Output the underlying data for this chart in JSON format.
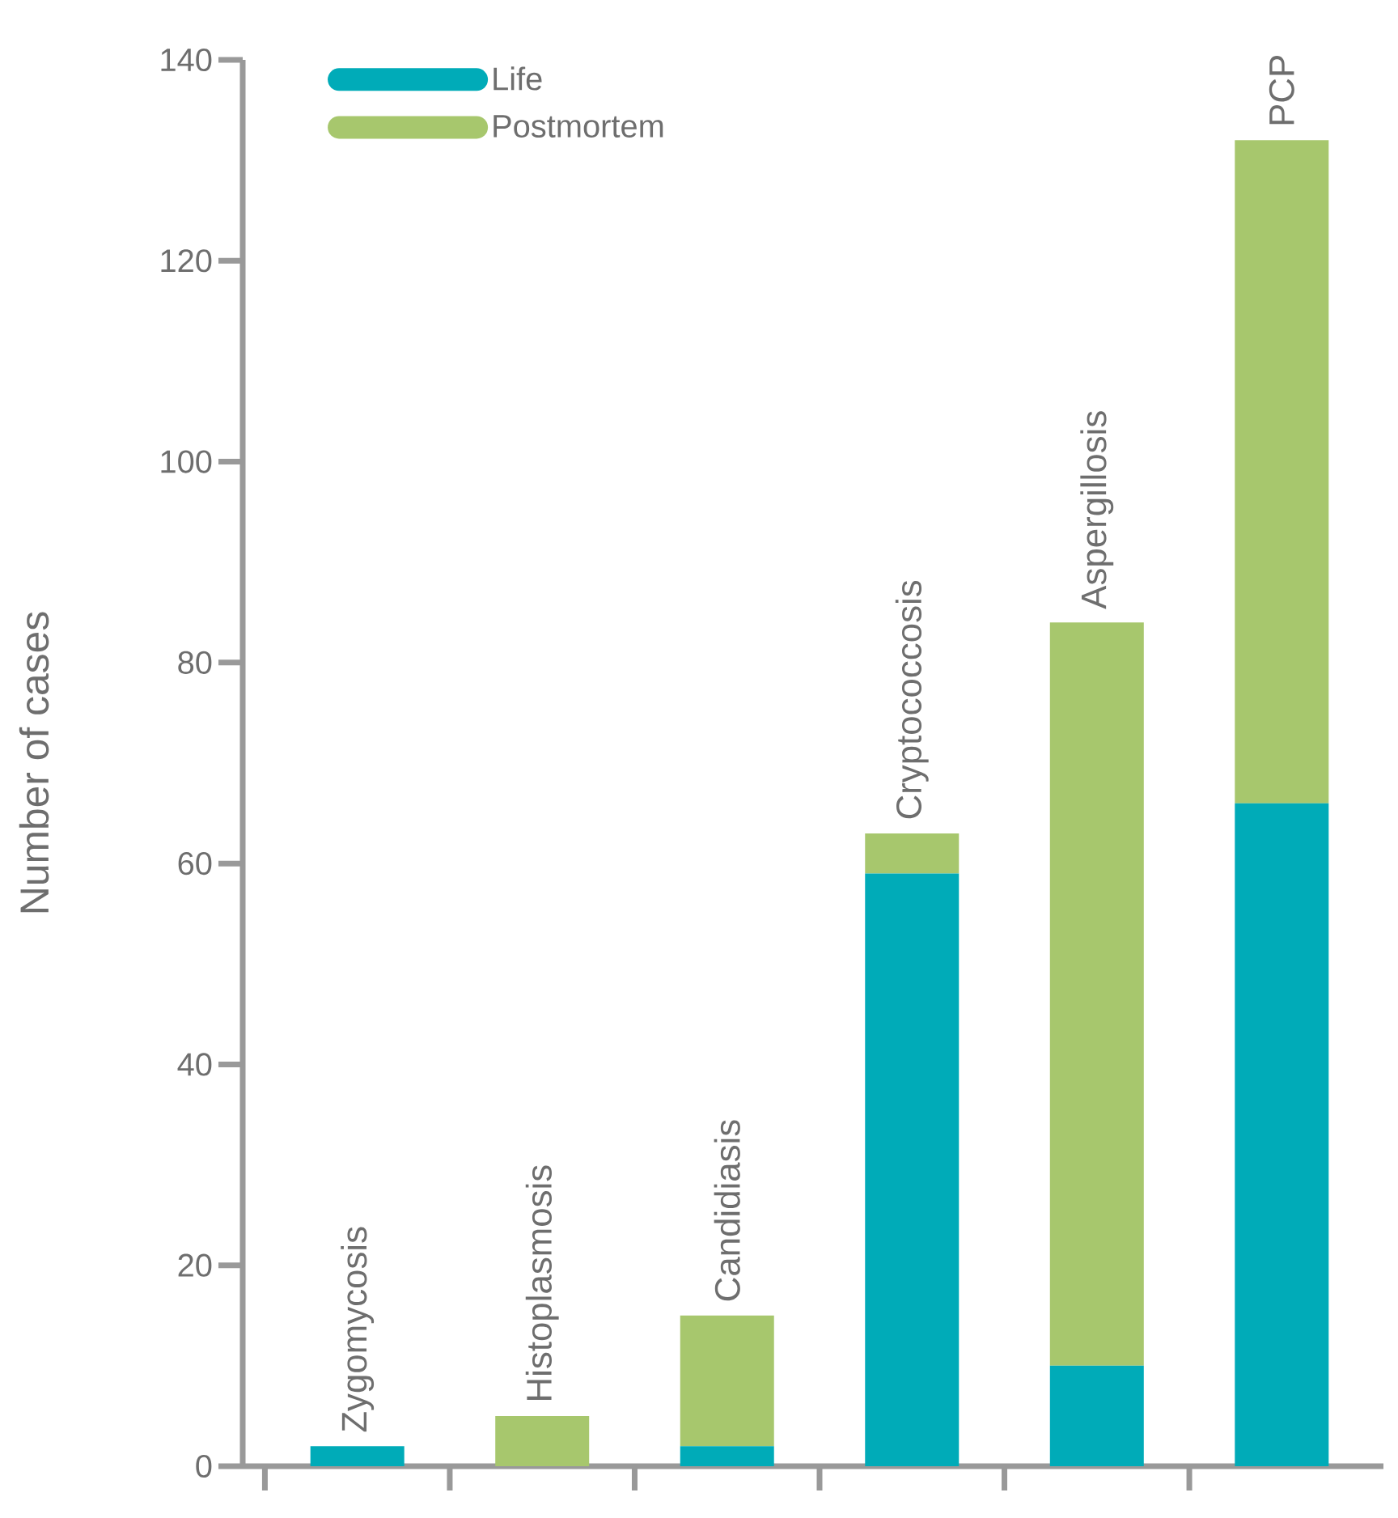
{
  "chart_data": {
    "type": "bar",
    "stacked": true,
    "ylabel": "Number of cases",
    "categories": [
      "Zygomycosis",
      "Histoplasmosis",
      "Candidiasis",
      "Cryptococcosis",
      "Aspergillosis",
      "PCP"
    ],
    "series": [
      {
        "name": "Life",
        "color": "#00abb8",
        "values": [
          2,
          0,
          2,
          59,
          10,
          66
        ]
      },
      {
        "name": "Postmortem",
        "color": "#a7c76d",
        "values": [
          0,
          5,
          13,
          4,
          74,
          66
        ]
      }
    ],
    "ylim": [
      0,
      140
    ],
    "yticks": [
      0,
      20,
      40,
      60,
      80,
      100,
      120,
      140
    ],
    "grid": false,
    "legend": "top left"
  }
}
